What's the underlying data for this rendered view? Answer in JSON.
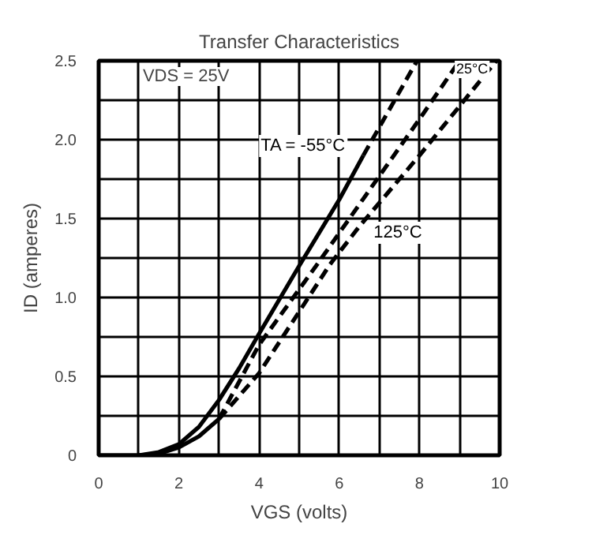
{
  "chart_data": {
    "type": "line",
    "title": "Transfer Characteristics",
    "xlabel": "VGS (volts)",
    "ylabel": "ID (amperes)",
    "xlim": [
      0,
      10
    ],
    "ylim": [
      0,
      2.5
    ],
    "xticks": [
      0,
      {
        "value": 1,
        "label": null
      },
      2,
      {
        "value": 3,
        "label": null
      },
      4,
      {
        "value": 5,
        "label": null
      },
      6,
      {
        "value": 7,
        "label": null
      },
      8,
      {
        "value": 9,
        "label": null
      },
      10
    ],
    "yticks": [
      0,
      {
        "value": 0.25,
        "label": null
      },
      0.5,
      {
        "value": 0.75,
        "label": null
      },
      {
        "value": 1,
        "label": "1.0"
      },
      {
        "value": 1.25,
        "label": null
      },
      1.5,
      {
        "value": 1.75,
        "label": null
      },
      {
        "value": 2,
        "label": "2.0"
      },
      {
        "value": 2.25,
        "label": null
      },
      2.5
    ],
    "grid": true,
    "marker": "none",
    "annotations": [
      "VDS = 25V"
    ],
    "series": [
      {
        "name": "TA = -55°C",
        "color": "#000000",
        "line_style": "solid",
        "x": [
          0,
          1,
          1.5,
          2,
          2.5,
          3,
          3.5,
          4,
          5,
          6,
          6.6
        ],
        "values": [
          0,
          0,
          0.02,
          0.07,
          0.18,
          0.35,
          0.55,
          0.77,
          1.2,
          1.62,
          1.9
        ]
      },
      {
        "color": "#000000",
        "line_style": "dashed",
        "x": [
          6.6,
          7.94
        ],
        "values": [
          1.9,
          2.5
        ]
      },
      {
        "color": "#000000",
        "line_style": "solid",
        "x": [
          1,
          1.5,
          2,
          2.5,
          3
        ],
        "values": [
          0,
          0.01,
          0.05,
          0.12,
          0.23
        ]
      },
      {
        "name": "25°C",
        "color": "#000000",
        "line_style": "dashed",
        "x": [
          3,
          4,
          5.45,
          7,
          8,
          9
        ],
        "values": [
          0.23,
          0.7,
          1.21,
          1.77,
          2.13,
          2.5
        ]
      },
      {
        "name": "125°C",
        "color": "#000000",
        "line_style": "dashed",
        "x": [
          3,
          4,
          5.77,
          6.5,
          8,
          9.92
        ],
        "values": [
          0.23,
          0.52,
          1.21,
          1.45,
          1.9,
          2.5
        ]
      }
    ]
  }
}
